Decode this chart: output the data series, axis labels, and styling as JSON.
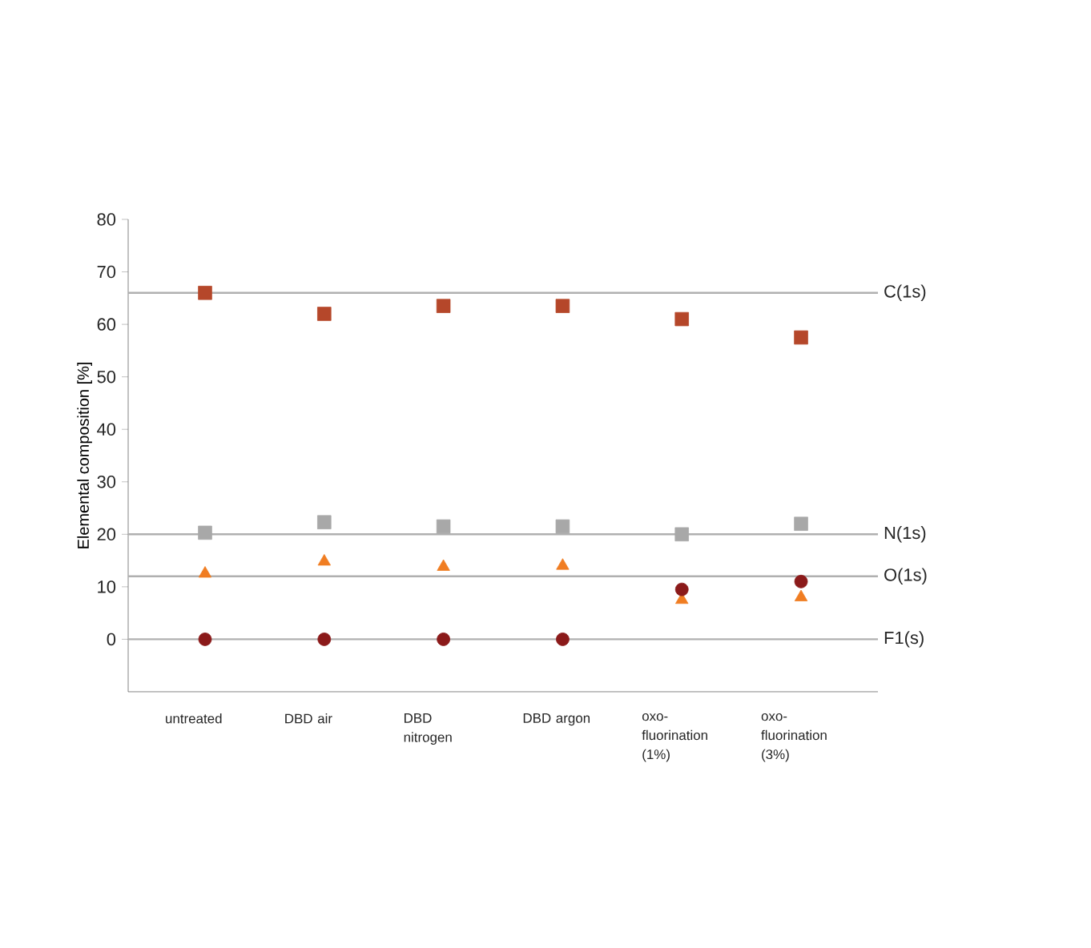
{
  "chart_data": {
    "type": "scatter",
    "ylabel": "Elemental composition [%]",
    "categories": [
      "untreated",
      "DBD air",
      "DBD nitrogen",
      "DBD argon",
      "oxo-fluorination (1%)",
      "oxo-fluorination (3%)"
    ],
    "series": [
      {
        "color": "#b5472a",
        "marker": "square",
        "values": [
          66,
          62,
          63.5,
          63.5,
          61,
          57.5
        ]
      },
      {
        "color": "#a8a8a8",
        "marker": "square",
        "values": [
          20.3,
          22.3,
          21.5,
          21.5,
          20,
          22
        ]
      },
      {
        "color": "#f07d22",
        "marker": "triangle",
        "values": [
          12.5,
          14.8,
          13.8,
          14,
          7.5,
          8
        ]
      },
      {
        "color": "#8b1a1a",
        "marker": "circle",
        "values": [
          0,
          0,
          0,
          0,
          9.5,
          11
        ]
      }
    ],
    "ylim": [
      -10,
      80
    ],
    "yticks": [
      0,
      10,
      20,
      30,
      40,
      50,
      60,
      70,
      80
    ],
    "ref_lines": [
      {
        "axis": "y",
        "value": 66,
        "label": "C(1s)",
        "color": "#b0b0b0"
      },
      {
        "axis": "y",
        "value": 20,
        "label": "N(1s)",
        "color": "#b0b0b0"
      },
      {
        "axis": "y",
        "value": 12,
        "label": "O(1s)",
        "color": "#b0b0b0"
      },
      {
        "axis": "y",
        "value": 0,
        "label": "F1(s)",
        "color": "#b0b0b0"
      }
    ]
  }
}
